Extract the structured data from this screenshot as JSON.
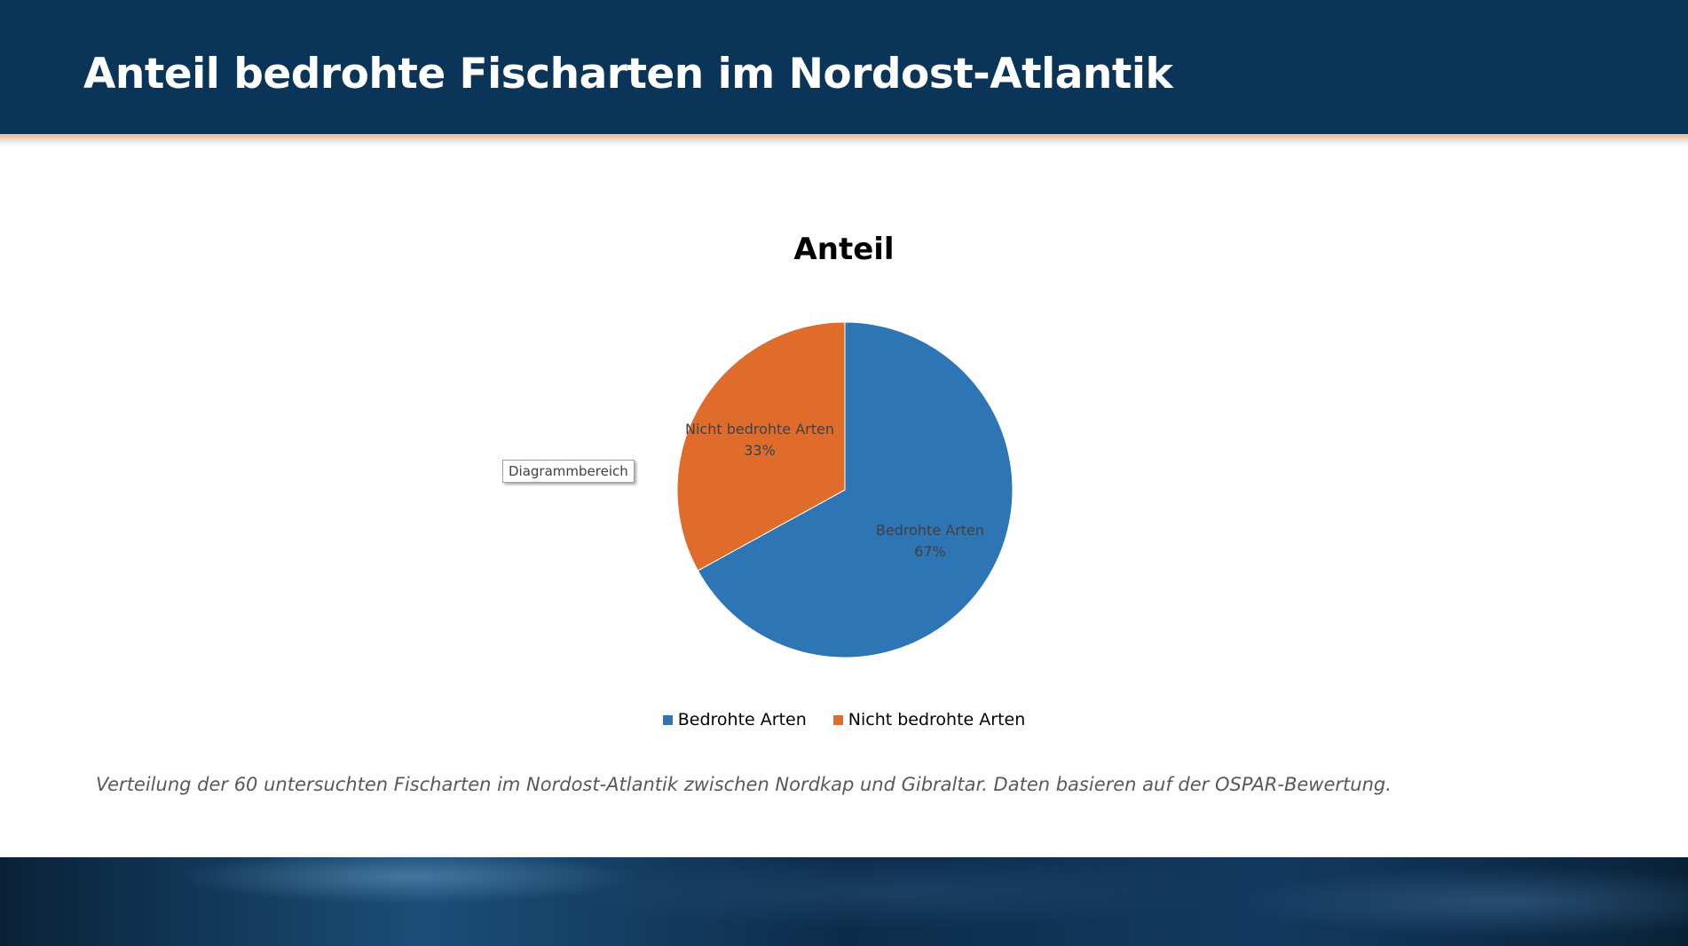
{
  "slide": {
    "title": "Anteil bedrohte Fischarten im Nordost-Atlantik",
    "caption": "Verteilung der 60 untersuchten Fischarten im Nordost-Atlantik zwischen Nordkap und Gibraltar. Daten basieren auf der OSPAR-Bewertung.",
    "tooltip": "Diagrammbereich"
  },
  "colors": {
    "header_bg": "#0a3558",
    "accent_line": "#e8b78f",
    "bedrohte": "#2e75b6",
    "nicht_bedrohte": "#e06c2c"
  },
  "chart_data": {
    "type": "pie",
    "title": "Anteil",
    "categories": [
      "Bedrohte Arten",
      "Nicht bedrohte Arten"
    ],
    "values": [
      67,
      33
    ],
    "labels": [
      "67%",
      "33%"
    ],
    "colors": [
      "#2e75b6",
      "#e06c2c"
    ],
    "legend": "bottom"
  }
}
